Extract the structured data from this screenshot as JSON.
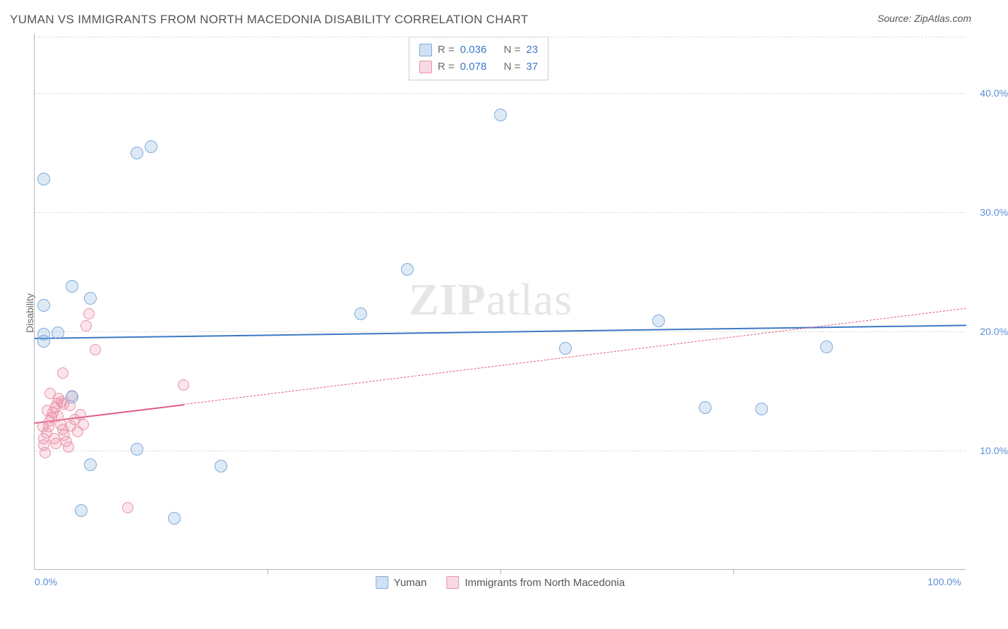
{
  "header": {
    "title": "YUMAN VS IMMIGRANTS FROM NORTH MACEDONIA DISABILITY CORRELATION CHART",
    "source": "Source: ZipAtlas.com"
  },
  "watermark": {
    "prefix": "ZIP",
    "suffix": "atlas"
  },
  "chart": {
    "type": "scatter",
    "xlim": [
      0,
      100
    ],
    "ylim": [
      0,
      45
    ],
    "ylabel": "Disability",
    "yticks": [
      {
        "v": 10,
        "label": "10.0%"
      },
      {
        "v": 20,
        "label": "20.0%"
      },
      {
        "v": 30,
        "label": "30.0%"
      },
      {
        "v": 40,
        "label": "40.0%"
      }
    ],
    "xticks": [
      {
        "v": 0,
        "label": "0.0%"
      },
      {
        "v": 100,
        "label": "100.0%"
      }
    ],
    "xtick_marks": [
      25,
      50,
      75
    ],
    "colors": {
      "blue_fill": "rgba(120,170,220,0.25)",
      "blue_stroke": "#7dabd9",
      "pink_fill": "rgba(235,130,160,0.22)",
      "pink_stroke": "#e893ab",
      "grid": "#dcdcdc",
      "axis": "#b8b8b8",
      "tick_text": "#5a8fd6",
      "label_text": "#6b6b6b",
      "blue_line": "#3b78c4",
      "pink_line": "#e05a84"
    },
    "legend_stats": [
      {
        "series": "yuman",
        "r_label": "R =",
        "r": "0.036",
        "n_label": "N =",
        "n": "23"
      },
      {
        "series": "imm",
        "r_label": "R =",
        "r": "0.078",
        "n_label": "N =",
        "n": "37"
      }
    ],
    "bottom_legend": [
      {
        "series": "yuman",
        "label": "Yuman"
      },
      {
        "series": "imm",
        "label": "Immigrants from North Macedonia"
      }
    ],
    "series_blue": {
      "trend": {
        "x0": 0,
        "y0": 19.5,
        "x1": 100,
        "y1": 20.6,
        "solid_until": 100
      },
      "points": [
        [
          1,
          32.8
        ],
        [
          4,
          23.8
        ],
        [
          6,
          22.8
        ],
        [
          1,
          22.2
        ],
        [
          1,
          19.8
        ],
        [
          1,
          19.2
        ],
        [
          2.5,
          19.9
        ],
        [
          11,
          35.0
        ],
        [
          12.5,
          35.5
        ],
        [
          50,
          38.2
        ],
        [
          40,
          25.2
        ],
        [
          35,
          21.5
        ],
        [
          67,
          20.9
        ],
        [
          57,
          18.6
        ],
        [
          72,
          13.6
        ],
        [
          78,
          13.5
        ],
        [
          85,
          18.7
        ],
        [
          11,
          10.1
        ],
        [
          6,
          8.8
        ],
        [
          20,
          8.7
        ],
        [
          5,
          5.0
        ],
        [
          15,
          4.3
        ],
        [
          4,
          14.5
        ]
      ]
    },
    "series_pink": {
      "trend": {
        "x0": 0,
        "y0": 12.4,
        "x1": 100,
        "y1": 22.0,
        "solid_until": 16
      },
      "points": [
        [
          1,
          10.5
        ],
        [
          1,
          11.0
        ],
        [
          1.3,
          11.5
        ],
        [
          1.5,
          12.0
        ],
        [
          1.6,
          12.5
        ],
        [
          1.8,
          12.8
        ],
        [
          2,
          13.2
        ],
        [
          2.2,
          13.6
        ],
        [
          2.4,
          14.0
        ],
        [
          2.6,
          14.4
        ],
        [
          2.8,
          12.2
        ],
        [
          3,
          11.8
        ],
        [
          3.2,
          11.3
        ],
        [
          3.4,
          10.8
        ],
        [
          3.6,
          10.3
        ],
        [
          3.8,
          13.8
        ],
        [
          4,
          14.6
        ],
        [
          4.3,
          12.6
        ],
        [
          4.6,
          11.6
        ],
        [
          4.9,
          13.0
        ],
        [
          5.2,
          12.2
        ],
        [
          5.5,
          20.5
        ],
        [
          5.8,
          21.5
        ],
        [
          3,
          16.5
        ],
        [
          1.4,
          13.4
        ],
        [
          2.1,
          11.0
        ],
        [
          2.5,
          12.9
        ],
        [
          2.9,
          14.1
        ],
        [
          6.5,
          18.5
        ],
        [
          16,
          15.5
        ],
        [
          10,
          5.2
        ],
        [
          1.1,
          9.8
        ],
        [
          0.9,
          12.0
        ],
        [
          1.7,
          14.8
        ],
        [
          2.3,
          10.6
        ],
        [
          3.1,
          13.9
        ],
        [
          3.9,
          12.1
        ]
      ]
    }
  }
}
